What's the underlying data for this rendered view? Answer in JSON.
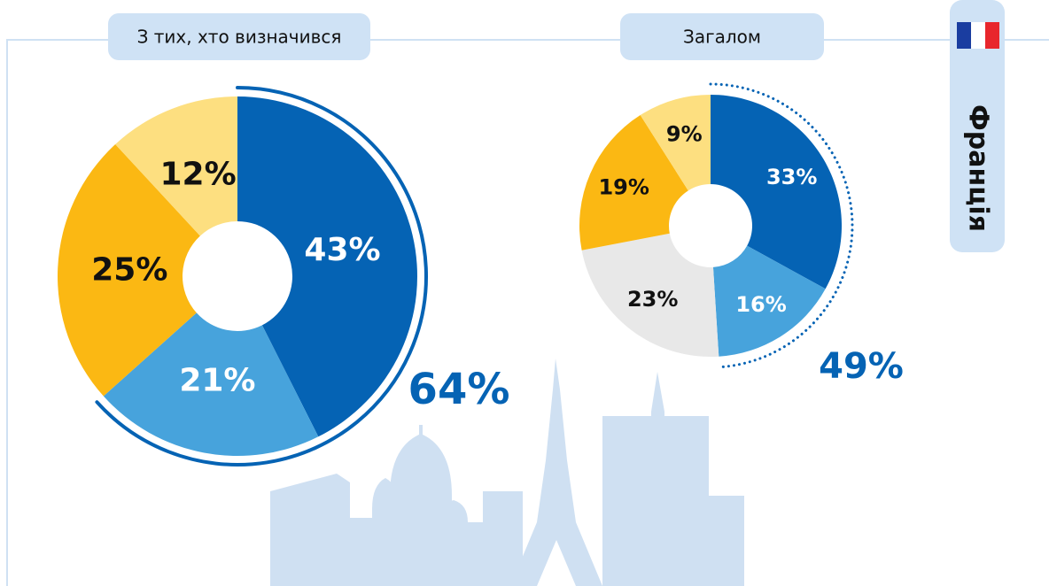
{
  "country": "Франція",
  "chart_data": [
    {
      "type": "pie",
      "title": "З тих, хто визначився",
      "annotation": "64%",
      "categories": [
        null,
        null,
        null,
        null
      ],
      "values": [
        43,
        21,
        25,
        12
      ],
      "value_labels": [
        "43%",
        "21%",
        "25%",
        "12%"
      ],
      "colors": [
        "#0563b4",
        "#47a3dc",
        "#fbb813",
        "#fddf80"
      ]
    },
    {
      "type": "pie",
      "title": "Загалом",
      "annotation": "49%",
      "categories": [
        null,
        null,
        null,
        null,
        null
      ],
      "values": [
        33,
        16,
        23,
        19,
        9
      ],
      "value_labels": [
        "33%",
        "16%",
        "23%",
        "19%",
        "9%"
      ],
      "colors": [
        "#0563b4",
        "#47a3dc",
        "#e8e8e8",
        "#fbb813",
        "#fddf80"
      ]
    }
  ]
}
